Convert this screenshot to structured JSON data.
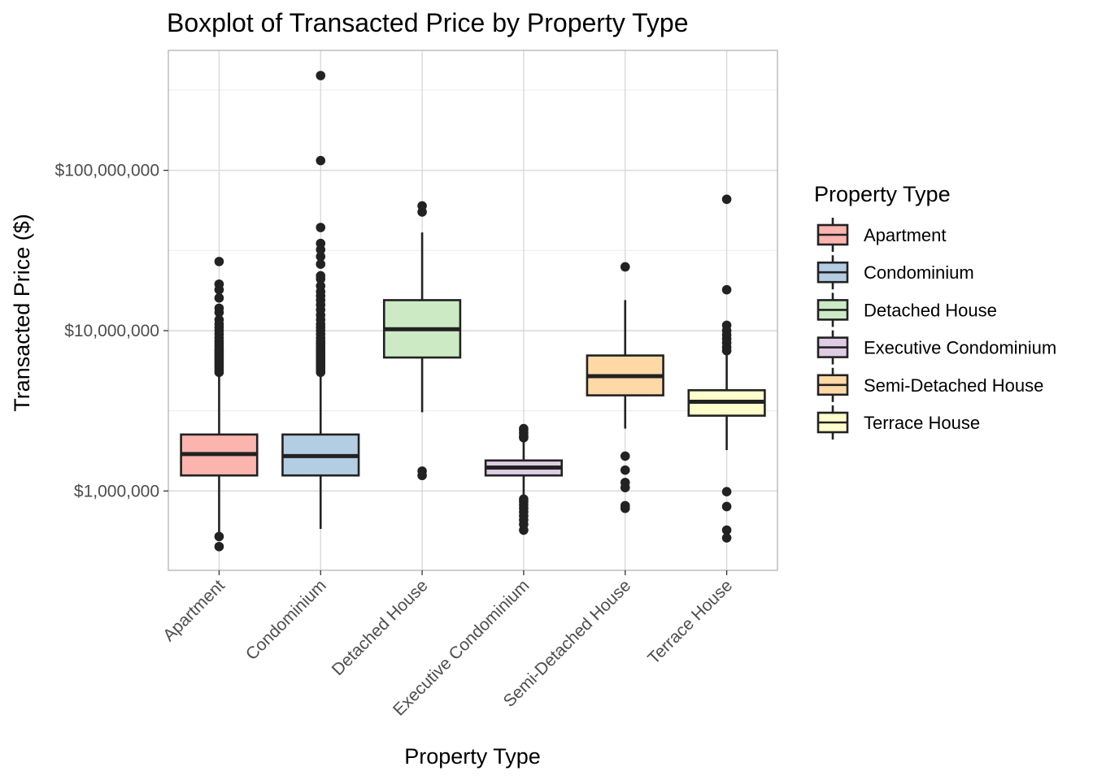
{
  "chart_data": {
    "type": "boxplot",
    "title": "Boxplot of Transacted Price by Property Type",
    "xlabel": "Property Type",
    "ylabel": "Transacted Price ($)",
    "y_scale": "log10",
    "ylim": [
      320000,
      560000000
    ],
    "y_ticks": [
      {
        "value": 1000000,
        "label": "$1,000,000"
      },
      {
        "value": 10000000,
        "label": "$10,000,000"
      },
      {
        "value": 100000000,
        "label": "$100,000,000"
      }
    ],
    "grid": true,
    "legend": {
      "title": "Property Type",
      "position": "right"
    },
    "categories": [
      "Apartment",
      "Condominium",
      "Detached House",
      "Executive Condominium",
      "Semi-Detached House",
      "Terrace House"
    ],
    "series": [
      {
        "name": "Apartment",
        "color": "#fbb4ae",
        "q1": 1250000,
        "median": 1700000,
        "q3": 2250000,
        "whisker_low": 520000,
        "whisker_high": 5500000,
        "outliers": [
          450000,
          520000,
          5500000,
          5700000,
          5900000,
          6100000,
          6300000,
          6500000,
          6700000,
          6900000,
          7100000,
          7300000,
          7500000,
          7700000,
          8000000,
          8300000,
          8600000,
          9000000,
          9500000,
          10000000,
          10500000,
          11000000,
          11700000,
          13000000,
          13800000,
          16000000,
          18000000,
          19500000,
          27000000
        ]
      },
      {
        "name": "Condominium",
        "color": "#b3cde3",
        "q1": 1250000,
        "median": 1650000,
        "q3": 2250000,
        "whisker_low": 580000,
        "whisker_high": 5500000,
        "outliers": [
          5500000,
          5700000,
          5900000,
          6100000,
          6300000,
          6500000,
          6700000,
          6900000,
          7100000,
          7300000,
          7500000,
          7700000,
          8000000,
          8300000,
          8600000,
          9000000,
          9500000,
          10000000,
          10500000,
          11000000,
          11700000,
          12500000,
          13500000,
          14500000,
          15500000,
          16500000,
          17500000,
          19000000,
          21000000,
          22000000,
          26000000,
          29000000,
          32000000,
          35000000,
          44000000,
          115000000,
          390000000
        ]
      },
      {
        "name": "Detached House",
        "color": "#ccebc5",
        "q1": 6800000,
        "median": 10200000,
        "q3": 15500000,
        "whisker_low": 3100000,
        "whisker_high": 41000000,
        "outliers": [
          1250000,
          1330000,
          55000000,
          60000000
        ]
      },
      {
        "name": "Executive Condominium",
        "color": "#decbe4",
        "q1": 1250000,
        "median": 1400000,
        "q3": 1550000,
        "whisker_low": 900000,
        "whisker_high": 2100000,
        "outliers": [
          570000,
          620000,
          660000,
          700000,
          740000,
          780000,
          820000,
          860000,
          890000,
          2150000,
          2200000,
          2300000,
          2400000,
          2450000
        ]
      },
      {
        "name": "Semi-Detached House",
        "color": "#fed9a6",
        "q1": 3950000,
        "median": 5200000,
        "q3": 7000000,
        "whisker_low": 2450000,
        "whisker_high": 15500000,
        "outliers": [
          780000,
          810000,
          1050000,
          1130000,
          1350000,
          1650000,
          25000000
        ]
      },
      {
        "name": "Terrace House",
        "color": "#ffffcc",
        "q1": 2950000,
        "median": 3600000,
        "q3": 4250000,
        "whisker_low": 1800000,
        "whisker_high": 7300000,
        "outliers": [
          510000,
          570000,
          800000,
          990000,
          7500000,
          7900000,
          8400000,
          8900000,
          9400000,
          10000000,
          10800000,
          18000000,
          66000000
        ]
      }
    ]
  }
}
